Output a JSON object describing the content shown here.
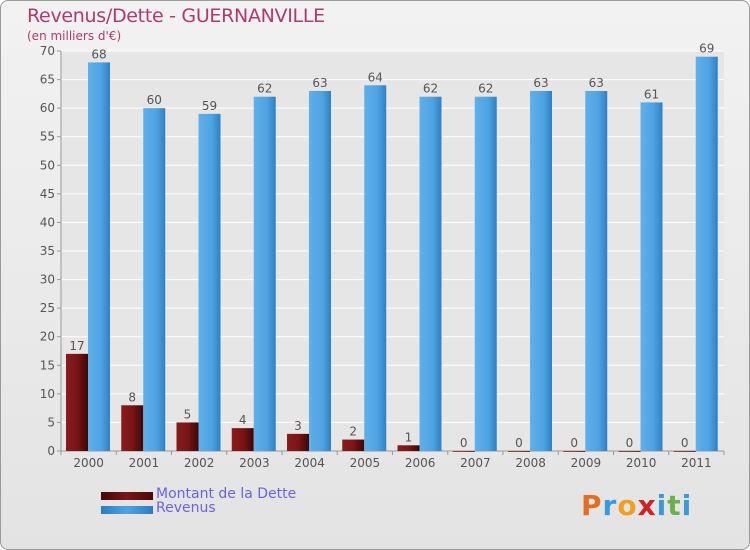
{
  "title": "Revenus/Dette - GUERNANVILLE",
  "subtitle": "(en milliers d'€)",
  "legend": {
    "debt_label": "Montant de la Dette",
    "revenue_label": "Revenus"
  },
  "logo": {
    "text": "Proxiti",
    "letters": [
      "P",
      "r",
      "o",
      "x",
      "i",
      "t",
      "i"
    ],
    "letter_colors": [
      "#e07020",
      "#3a9ad9",
      "#f0a020",
      "#d02020",
      "#3a9ad9",
      "#6ab04c",
      "#3a9ad9"
    ]
  },
  "colors": {
    "debt": "#7a1515",
    "revenue": "#4ea3e2",
    "title": "#b03a6f",
    "legend_text": "#6b63e0"
  },
  "chart_data": {
    "type": "bar",
    "title": "Revenus/Dette - GUERNANVILLE",
    "ylabel": "(en milliers d'€)",
    "categories": [
      "2000",
      "2001",
      "2002",
      "2003",
      "2004",
      "2005",
      "2006",
      "2007",
      "2008",
      "2009",
      "2010",
      "2011"
    ],
    "series": [
      {
        "name": "Montant de la Dette",
        "values": [
          17,
          8,
          5,
          4,
          3,
          2,
          1,
          0,
          0,
          0,
          0,
          0
        ]
      },
      {
        "name": "Revenus",
        "values": [
          68,
          60,
          59,
          62,
          63,
          64,
          62,
          62,
          63,
          63,
          61,
          69
        ]
      }
    ],
    "ylim": [
      0,
      70
    ],
    "yticks": [
      0,
      5,
      10,
      15,
      20,
      25,
      30,
      35,
      40,
      45,
      50,
      55,
      60,
      65,
      70
    ],
    "grid": true,
    "legend": "bottom-left"
  }
}
